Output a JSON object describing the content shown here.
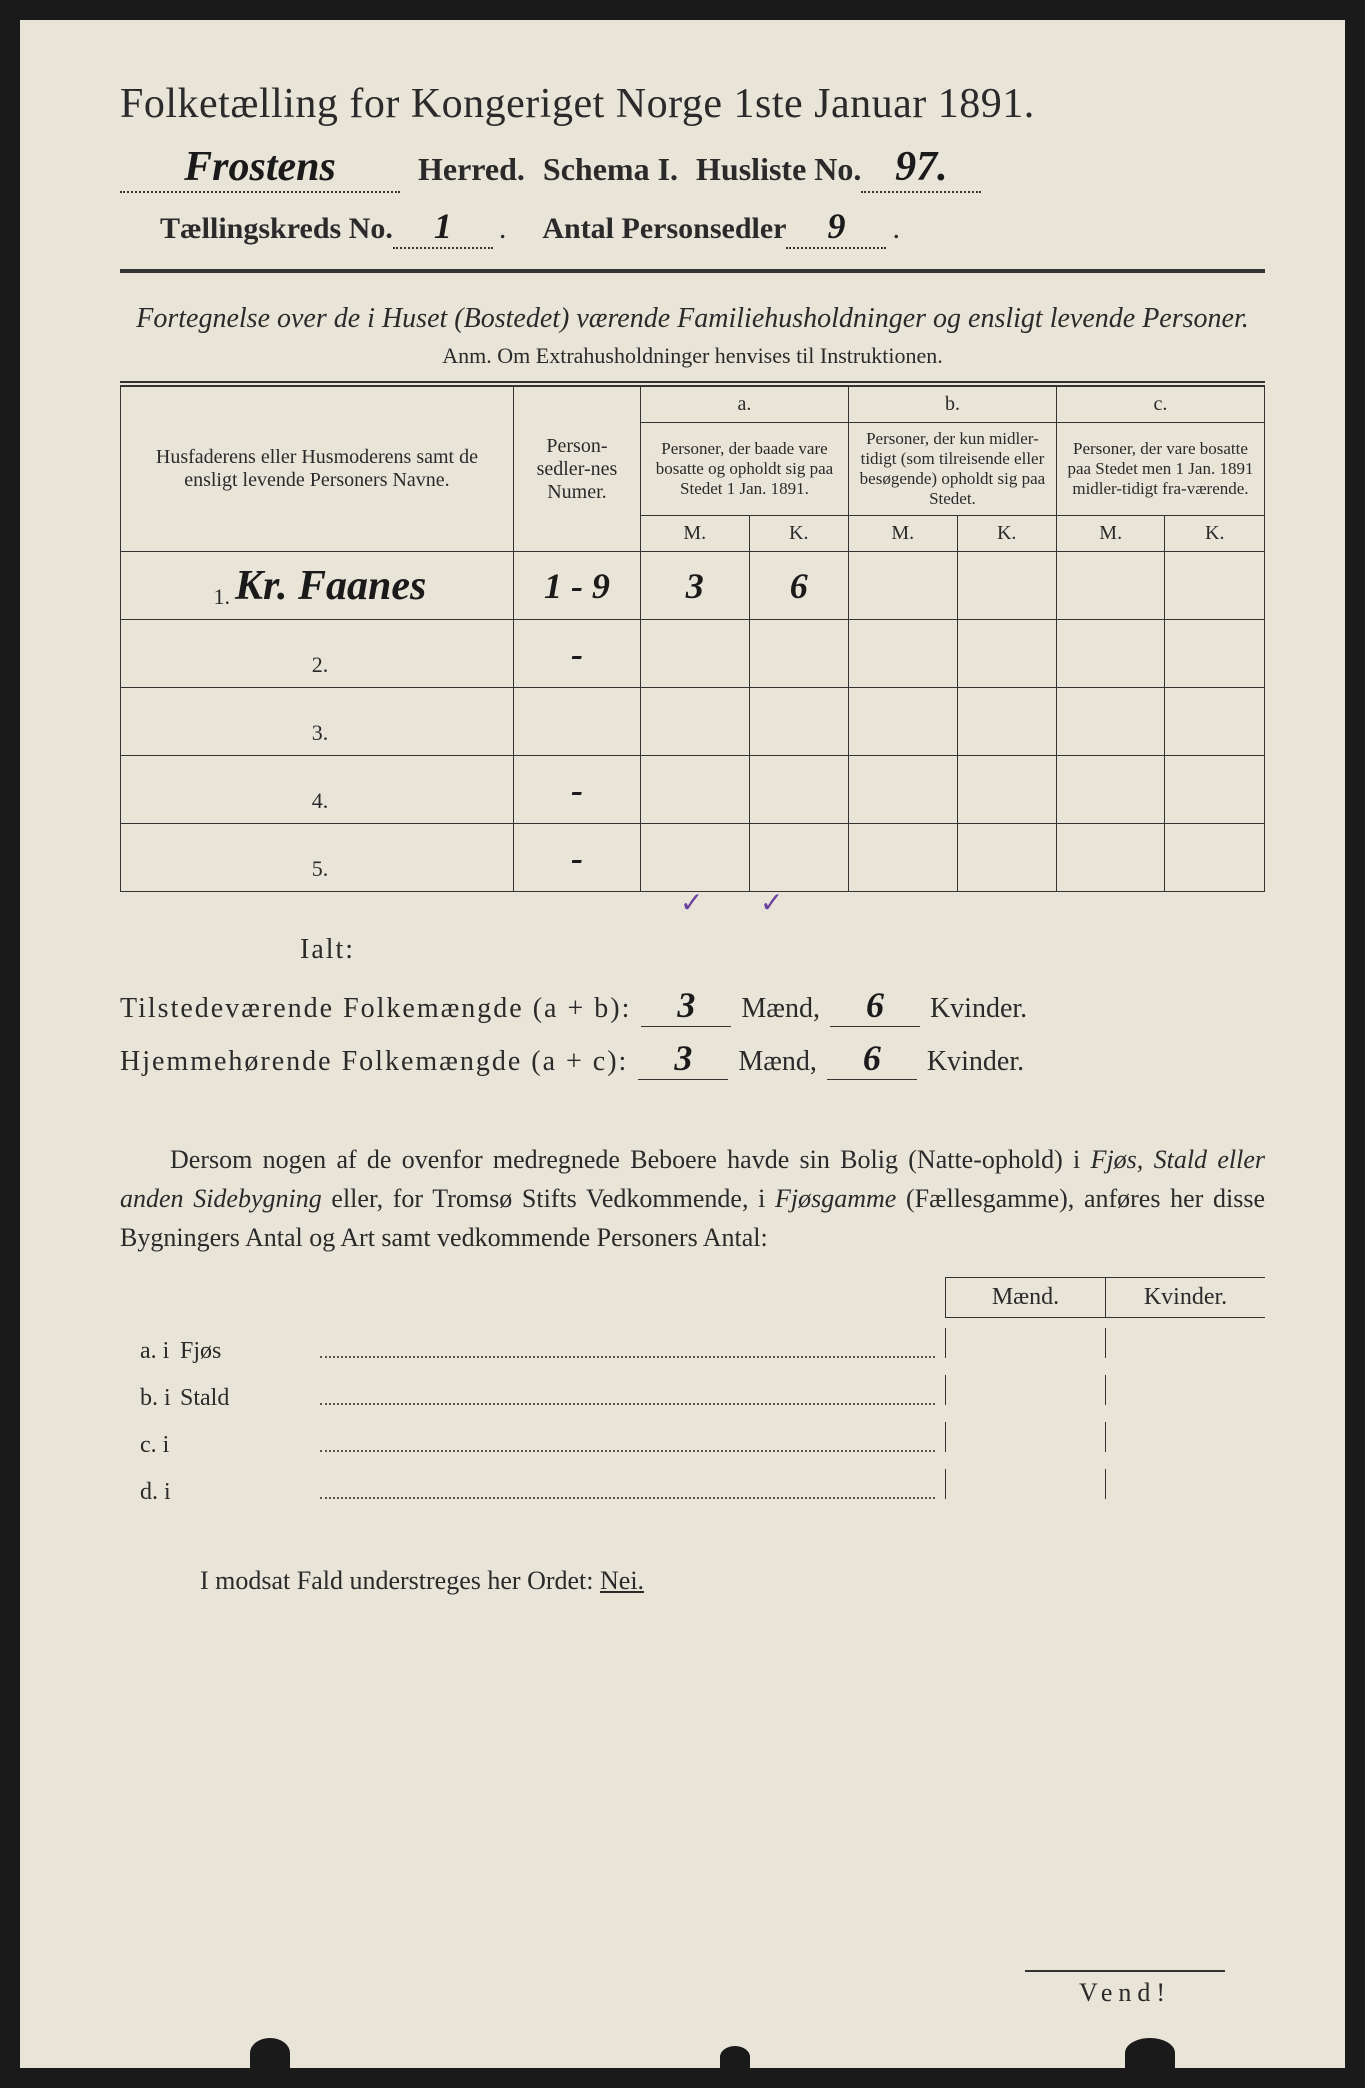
{
  "header": {
    "title": "Folketælling for Kongeriget Norge 1ste Januar 1891.",
    "herred_hw": "Frostens",
    "herred_lbl": "Herred.",
    "schema": "Schema I.",
    "husliste_lbl": "Husliste No.",
    "husliste_hw": "97.",
    "kreds_lbl": "Tællingskreds No.",
    "kreds_hw": "1",
    "antal_lbl": "Antal Personsedler",
    "antal_hw": "9"
  },
  "subtitle": "Fortegnelse over de i Huset (Bostedet) værende Familiehusholdninger og ensligt levende Personer.",
  "anm": "Anm. Om Extrahusholdninger henvises til Instruktionen.",
  "table": {
    "col_name": "Husfaderens eller Husmoderens samt de ensligt levende Personers Navne.",
    "col_nums": "Person-sedler-nes Numer.",
    "col_a_h": "a.",
    "col_a": "Personer, der baade vare bosatte og opholdt sig paa Stedet 1 Jan. 1891.",
    "col_b_h": "b.",
    "col_b": "Personer, der kun midler-tidigt (som tilreisende eller besøgende) opholdt sig paa Stedet.",
    "col_c_h": "c.",
    "col_c": "Personer, der vare bosatte paa Stedet men 1 Jan. 1891 midler-tidigt fra-værende.",
    "M": "M.",
    "K": "K.",
    "rows": [
      {
        "n": "1.",
        "name_hw": "Kr. Faanes",
        "nums": "1 - 9",
        "aM": "3",
        "aK": "6",
        "bM": "",
        "bK": "",
        "cM": "",
        "cK": ""
      },
      {
        "n": "2.",
        "name_hw": "",
        "nums": "-",
        "aM": "",
        "aK": "",
        "bM": "",
        "bK": "",
        "cM": "",
        "cK": ""
      },
      {
        "n": "3.",
        "name_hw": "",
        "nums": "",
        "aM": "",
        "aK": "",
        "bM": "",
        "bK": "",
        "cM": "",
        "cK": ""
      },
      {
        "n": "4.",
        "name_hw": "",
        "nums": "-",
        "aM": "",
        "aK": "",
        "bM": "",
        "bK": "",
        "cM": "",
        "cK": ""
      },
      {
        "n": "5.",
        "name_hw": "",
        "nums": "-",
        "aM": "",
        "aK": "",
        "bM": "",
        "bK": "",
        "cM": "",
        "cK": ""
      }
    ],
    "checks": {
      "c1": "✓",
      "c2": "✓"
    }
  },
  "ialt": {
    "label": "Ialt:",
    "row1_lbl": "Tilstedeværende Folkemængde (a + b):",
    "row2_lbl": "Hjemmehørende Folkemængde (a + c):",
    "m1": "3",
    "k1": "6",
    "m2": "3",
    "k2": "6",
    "maend": "Mænd,",
    "kvinder": "Kvinder."
  },
  "para": {
    "text1": "Dersom nogen af de ovenfor medregnede Beboere havde sin Bolig (Natte-ophold) i ",
    "it1": "Fjøs, Stald eller anden Sidebygning",
    "text2": " eller, for Tromsø Stifts Vedkommende, i ",
    "it2": "Fjøsgamme",
    "text3": " (Fællesgamme), anføres her disse Bygningers Antal og Art samt vedkommende Personers Antal:"
  },
  "smalltable": {
    "maend": "Mænd.",
    "kvinder": "Kvinder.",
    "rows": [
      {
        "l": "a.  i",
        "w": "Fjøs"
      },
      {
        "l": "b.  i",
        "w": "Stald"
      },
      {
        "l": "c.  i",
        "w": ""
      },
      {
        "l": "d.  i",
        "w": ""
      }
    ]
  },
  "modsat": "I modsat Fald understreges her Ordet:",
  "nei": "Nei.",
  "vend": "Vend!",
  "colors": {
    "paper": "#e8e4d8",
    "ink": "#2a2a2a",
    "purple": "#6b3fa0"
  }
}
